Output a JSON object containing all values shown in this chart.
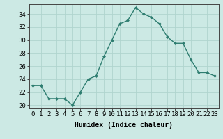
{
  "x": [
    0,
    1,
    2,
    3,
    4,
    5,
    6,
    7,
    8,
    9,
    10,
    11,
    12,
    13,
    14,
    15,
    16,
    17,
    18,
    19,
    20,
    21,
    22,
    23
  ],
  "y": [
    23,
    23,
    21,
    21,
    21,
    20,
    22,
    24,
    24.5,
    27.5,
    30,
    32.5,
    33,
    35,
    34,
    33.5,
    32.5,
    30.5,
    29.5,
    29.5,
    27,
    25,
    25,
    24.5
  ],
  "line_color": "#2e7d70",
  "marker": "D",
  "marker_size": 2.0,
  "bg_color": "#cce9e4",
  "grid_color": "#b0d4ce",
  "xlabel": "Humidex (Indice chaleur)",
  "xlabel_fontsize": 7,
  "yticks": [
    20,
    22,
    24,
    26,
    28,
    30,
    32,
    34
  ],
  "xticks": [
    0,
    1,
    2,
    3,
    4,
    5,
    6,
    7,
    8,
    9,
    10,
    11,
    12,
    13,
    14,
    15,
    16,
    17,
    18,
    19,
    20,
    21,
    22,
    23
  ],
  "ylim": [
    19.5,
    35.5
  ],
  "xlim": [
    -0.5,
    23.5
  ],
  "tick_fontsize": 6.5,
  "line_width": 1.0
}
